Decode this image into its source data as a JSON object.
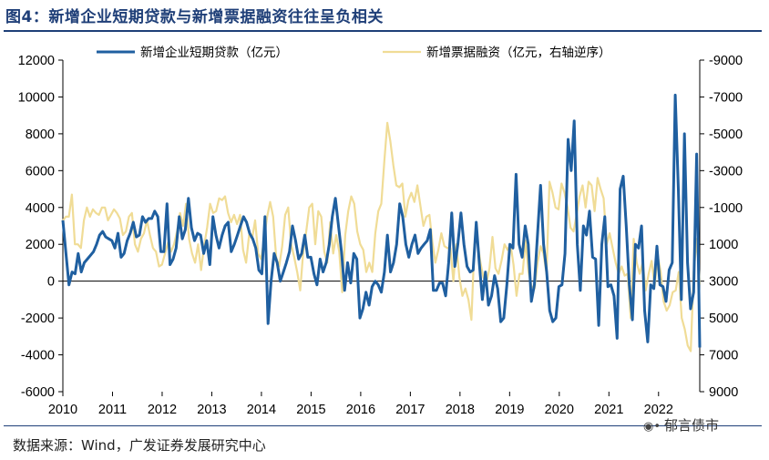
{
  "figure": {
    "title": "图4：新增企业短期贷款与新增票据融资往往呈负相关",
    "source": "数据来源：Wind，广发证券发展研究中心",
    "watermark": "郁言债市",
    "watermark_icon": "wechat-icon"
  },
  "chart_data": {
    "type": "line",
    "x_ticks": [
      "2010",
      "2011",
      "2012",
      "2013",
      "2014",
      "2015",
      "2016",
      "2017",
      "2018",
      "2019",
      "2020",
      "2021",
      "2022"
    ],
    "x_range": [
      2010.0,
      2022.83
    ],
    "y_left": {
      "min": -6000,
      "max": 12000,
      "ticks": [
        "12000",
        "10000",
        "8000",
        "6000",
        "4000",
        "2000",
        "0",
        "-2000",
        "-4000",
        "-6000"
      ]
    },
    "y_right": {
      "min": -9000,
      "max": 9000,
      "inverted": true,
      "ticks": [
        "-9000",
        "-7000",
        "-5000",
        "-3000",
        "-1000",
        "1000",
        "3000",
        "5000",
        "7000",
        "9000"
      ]
    },
    "legend": "top",
    "colors": {
      "short_loans": "#1f5fa0",
      "bill_financing": "#f0dc96",
      "axis": "#000000",
      "title": "#1f3f78"
    },
    "series": [
      {
        "name": "新增企业短期贷款（亿元）",
        "axis": "left",
        "values": [
          3300,
          1500,
          -200,
          500,
          400,
          1500,
          500,
          1000,
          1200,
          1400,
          1600,
          2000,
          2500,
          2700,
          2400,
          2300,
          2200,
          1800,
          2600,
          1300,
          1500,
          2200,
          2600,
          3200,
          2400,
          2500,
          3500,
          3200,
          3400,
          3400,
          3800,
          3500,
          1600,
          1600,
          4200,
          900,
          1200,
          1800,
          3500,
          2300,
          2800,
          4500,
          2900,
          2200,
          2600,
          2500,
          1500,
          2200,
          900,
          3500,
          2500,
          1800,
          2500,
          3000,
          3200,
          1600,
          2000,
          2500,
          3000,
          3500,
          3200,
          2600,
          2300,
          1800,
          600,
          400,
          3500,
          -2300,
          0,
          1500,
          1000,
          0,
          500,
          1000,
          1600,
          3000,
          2200,
          1200,
          1500,
          2500,
          1300,
          1300,
          400,
          -200,
          1200,
          500,
          1000,
          2000,
          3500,
          4500,
          3000,
          1600,
          -500,
          1000,
          -100,
          1500,
          1200,
          -2000,
          -1500,
          -600,
          -1300,
          -300,
          0,
          -200,
          -600,
          500,
          2500,
          500,
          1000,
          2000,
          4200,
          3500,
          2000,
          1300,
          2000,
          2500,
          1500,
          1800,
          2000,
          2200,
          2800,
          -500,
          -500,
          -100,
          -100,
          -800,
          1000,
          3700,
          800,
          2000,
          3700,
          2000,
          800,
          500,
          600,
          3200,
          1000,
          -1000,
          500,
          -1300,
          -800,
          300,
          -400,
          -2200,
          -2000,
          -200,
          2000,
          1800,
          5800,
          2000,
          1300,
          3000,
          2000,
          -1100,
          -200,
          2500,
          5200,
          2000,
          500,
          -1600,
          -2200,
          -2000,
          -300,
          -200,
          1500,
          7700,
          6000,
          8700,
          2000,
          -500,
          3000,
          2500,
          3800,
          1300,
          1200,
          -2400,
          2000,
          3500,
          -300,
          -200,
          -800,
          -3100,
          5000,
          5700,
          3000,
          -200,
          -2100,
          2000,
          1800,
          3000,
          -1600,
          -3300,
          -200,
          -400,
          1900,
          -200,
          -300,
          -1100,
          600,
          1000,
          10100,
          5000,
          -1000,
          8000,
          1000,
          -1500,
          -600,
          6900,
          -3600
        ]
      },
      {
        "name": "新增票据融资（亿元，右轴逆序）",
        "axis": "right",
        "values": [
          -300,
          -500,
          -500,
          -1700,
          1000,
          1000,
          1200,
          -300,
          -1000,
          -500,
          -900,
          -700,
          -600,
          -1000,
          -1000,
          -300,
          -600,
          -900,
          -700,
          -400,
          500,
          300,
          -500,
          -700,
          1000,
          1400,
          700,
          400,
          -300,
          500,
          1200,
          1400,
          2200,
          2100,
          1500,
          900,
          1400,
          1000,
          300,
          -700,
          0,
          -1200,
          700,
          1500,
          2000,
          1000,
          2400,
          1100,
          100,
          -1200,
          -700,
          -800,
          -1500,
          -1400,
          -1600,
          -700,
          -200,
          -600,
          -100,
          -600,
          1300,
          2000,
          500,
          700,
          -300,
          1500,
          1800,
          700,
          -500,
          -1300,
          -500,
          1700,
          2200,
          1100,
          -600,
          -1000,
          1000,
          1700,
          2500,
          3500,
          1400,
          300,
          -1000,
          -1200,
          1000,
          -800,
          -500,
          1400,
          2000,
          -200,
          1500,
          500,
          1400,
          3600,
          500,
          -800,
          -1600,
          -1200,
          300,
          1000,
          1300,
          2500,
          2000,
          2500,
          400,
          -800,
          -1200,
          -3500,
          -5600,
          -4600,
          -3300,
          -2200,
          -2100,
          -2300,
          -500,
          -1400,
          -1800,
          -1300,
          -2200,
          -1100,
          0,
          -500,
          -600,
          900,
          2000,
          1300,
          400,
          1100,
          1200,
          1200,
          3000,
          1000,
          2800,
          3800,
          3400,
          4000,
          5100,
          1000,
          800,
          2000,
          2800,
          3100,
          2300,
          600,
          2300,
          2600,
          1900,
          1000,
          1300,
          1000,
          2100,
          3800,
          2600,
          2600,
          800,
          2500,
          3300,
          3400,
          2000,
          1100,
          1500,
          2600,
          -2400,
          -1800,
          -1000,
          -900,
          -2300,
          -1800,
          -1000,
          100,
          300,
          -600,
          -1600,
          -2200,
          -1000,
          -2400,
          -2200,
          -800,
          -2600,
          -2000,
          -1500,
          1000,
          400,
          1200,
          2000,
          2600,
          2200,
          2700,
          2600,
          5000,
          700,
          2000,
          2600,
          2000,
          3500,
          2600,
          1900,
          3300,
          1600,
          2500,
          4100,
          4600,
          4300,
          3600,
          3500,
          2500,
          5000,
          5600,
          6500,
          6800,
          2500,
          700,
          3200
        ]
      }
    ]
  }
}
